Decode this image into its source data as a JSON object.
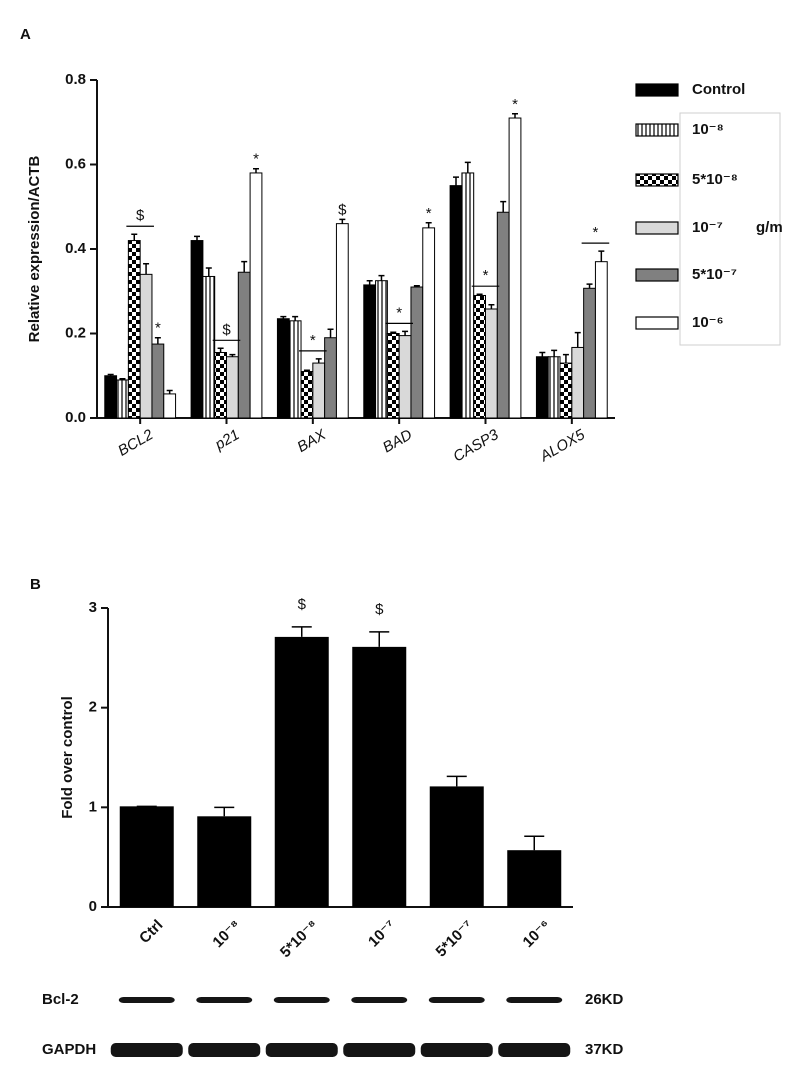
{
  "chart_data": [
    {
      "type": "grouped-bar",
      "panel": "A",
      "ylabel": "Relative expression/ACTB",
      "categories": [
        "BCL2",
        "p21",
        "BAX",
        "BAD",
        "CASP3",
        "ALOX5"
      ],
      "series": [
        {
          "name": "Control",
          "color": "#000000",
          "pattern": "solid",
          "values": [
            0.1,
            0.42,
            0.235,
            0.315,
            0.55,
            0.145
          ],
          "errors": [
            0.003,
            0.01,
            0.005,
            0.01,
            0.02,
            0.01
          ]
        },
        {
          "name": "10⁻⁸",
          "color": "#ffffff",
          "pattern": "vertical-lines",
          "values": [
            0.09,
            0.335,
            0.23,
            0.325,
            0.58,
            0.145
          ],
          "errors": [
            0.003,
            0.02,
            0.01,
            0.012,
            0.025,
            0.015
          ]
        },
        {
          "name": "5*10⁻⁸",
          "color": "#000000",
          "pattern": "checker",
          "values": [
            0.42,
            0.155,
            0.11,
            0.2,
            0.29,
            0.13
          ],
          "errors": [
            0.015,
            0.01,
            0.003,
            0.003,
            0.003,
            0.02
          ]
        },
        {
          "name": "10⁻⁷",
          "color": "#d9d9d9",
          "pattern": "solid",
          "values": [
            0.34,
            0.145,
            0.13,
            0.195,
            0.258,
            0.167
          ],
          "errors": [
            0.025,
            0.005,
            0.01,
            0.01,
            0.01,
            0.035
          ]
        },
        {
          "name": "5*10⁻⁷",
          "color": "#808080",
          "pattern": "solid",
          "values": [
            0.175,
            0.345,
            0.19,
            0.31,
            0.487,
            0.307
          ],
          "errors": [
            0.015,
            0.025,
            0.02,
            0.003,
            0.025,
            0.01
          ]
        },
        {
          "name": "10⁻⁶",
          "color": "#ffffff",
          "pattern": "solid",
          "values": [
            0.057,
            0.58,
            0.46,
            0.45,
            0.71,
            0.37
          ],
          "errors": [
            0.008,
            0.01,
            0.01,
            0.012,
            0.01,
            0.025
          ]
        }
      ],
      "legend_title": "g/m",
      "legend": "right",
      "ylim": [
        0,
        0.8
      ],
      "yticks": [
        {
          "value": 0,
          "label": "0.0"
        },
        0.2,
        0.4,
        0.6,
        0.8
      ],
      "annotations": [
        {
          "text": "$",
          "category": "BCL2",
          "from": "5*10⁻⁸",
          "to": "10⁻⁷"
        },
        {
          "text": "*",
          "category": "BCL2",
          "from": "5*10⁻⁷",
          "to": "5*10⁻⁷"
        },
        {
          "text": "$",
          "category": "p21",
          "from": "5*10⁻⁸",
          "to": "10⁻⁷"
        },
        {
          "text": "*",
          "category": "p21",
          "from": "10⁻⁶",
          "to": "10⁻⁶"
        },
        {
          "text": "*",
          "category": "BAX",
          "from": "5*10⁻⁸",
          "to": "10⁻⁷"
        },
        {
          "text": "$",
          "category": "BAX",
          "from": "10⁻⁶",
          "to": "10⁻⁶"
        },
        {
          "text": "*",
          "category": "BAD",
          "from": "5*10⁻⁸",
          "to": "10⁻⁷"
        },
        {
          "text": "*",
          "category": "BAD",
          "from": "10⁻⁶",
          "to": "10⁻⁶"
        },
        {
          "text": "*",
          "category": "CASP3",
          "from": "5*10⁻⁸",
          "to": "10⁻⁷"
        },
        {
          "text": "*",
          "category": "CASP3",
          "from": "10⁻⁶",
          "to": "10⁻⁶"
        },
        {
          "text": "*",
          "category": "ALOX5",
          "from": "5*10⁻⁷",
          "to": "10⁻⁶"
        }
      ]
    },
    {
      "type": "bar",
      "panel": "B",
      "ylabel": "Fold over control",
      "categories": [
        "Ctrl",
        "10⁻⁸",
        "5*10⁻⁸",
        "10⁻⁷",
        "5*10⁻⁷",
        "10⁻⁶"
      ],
      "values": [
        1.01,
        0.91,
        2.71,
        2.61,
        1.21,
        0.57
      ],
      "errors": [
        0,
        0.09,
        0.1,
        0.15,
        0.1,
        0.14
      ],
      "color": "#000000",
      "ylim": [
        0,
        3
      ],
      "yticks": [
        0,
        1,
        2,
        3
      ],
      "annotations": [
        {
          "text": "$",
          "category": "5*10⁻⁸"
        },
        {
          "text": "$",
          "category": "10⁻⁷"
        }
      ],
      "blot": [
        {
          "label": "Bcl-2",
          "size": "26KD"
        },
        {
          "label": "GAPDH",
          "size": "37KD"
        }
      ]
    }
  ]
}
